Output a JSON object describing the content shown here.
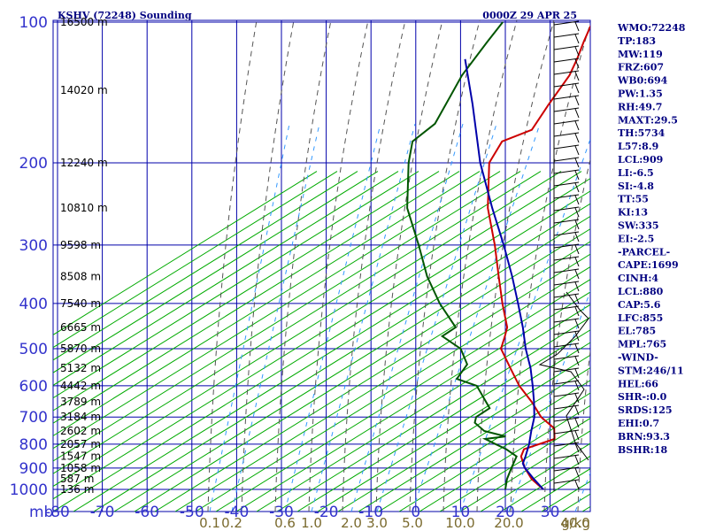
{
  "chart_data": {
    "type": "skew-t",
    "title": "KSHV (72248) Sounding",
    "time": "0000Z 29 APR 25",
    "pressure_axis_unit": "mb",
    "pressure_levels": [
      100,
      200,
      300,
      400,
      500,
      600,
      700,
      800,
      900,
      1000
    ],
    "temperature_ticks": [
      "-80",
      "-70",
      "-60",
      "-50",
      "-40",
      "-30",
      "-20",
      "-10",
      "0",
      "10",
      "20",
      "30"
    ],
    "temperature_range_c": [
      -80,
      40
    ],
    "mixing_ratio_labels": [
      "0.1",
      "0.2",
      "0.6",
      "1.0",
      "2.0",
      "3.0",
      "5.0",
      "10.0",
      "20.0",
      "40.0"
    ],
    "mixing_ratio_unit": "g/kg",
    "height_labels": [
      {
        "p": 100,
        "text": "16500 m"
      },
      {
        "p": 140,
        "text": "14020 m"
      },
      {
        "p": 200,
        "text": "12240 m"
      },
      {
        "p": 250,
        "text": "10810 m"
      },
      {
        "p": 300,
        "text": "9598 m"
      },
      {
        "p": 350,
        "text": "8508 m"
      },
      {
        "p": 400,
        "text": "7540 m"
      },
      {
        "p": 450,
        "text": "6665 m"
      },
      {
        "p": 500,
        "text": "5870 m"
      },
      {
        "p": 550,
        "text": "5132 m"
      },
      {
        "p": 600,
        "text": "4442 m"
      },
      {
        "p": 650,
        "text": "3789 m"
      },
      {
        "p": 700,
        "text": "3184 m"
      },
      {
        "p": 750,
        "text": "2602 m"
      },
      {
        "p": 800,
        "text": "2057 m"
      },
      {
        "p": 850,
        "text": "1547 m"
      },
      {
        "p": 900,
        "text": "1058 m"
      },
      {
        "p": 950,
        "text": "587 m"
      },
      {
        "p": 1000,
        "text": "136 m"
      }
    ],
    "series": [
      {
        "kind": "temperature",
        "color": "#cc0000",
        "points": [
          {
            "p": 1000,
            "t": 28.5
          },
          {
            "p": 950,
            "t": 23.5
          },
          {
            "p": 900,
            "t": 19.5
          },
          {
            "p": 850,
            "t": 16.0
          },
          {
            "p": 820,
            "t": 15.0
          },
          {
            "p": 780,
            "t": 19.5
          },
          {
            "p": 740,
            "t": 17.0
          },
          {
            "p": 700,
            "t": 11.5
          },
          {
            "p": 650,
            "t": 6.0
          },
          {
            "p": 600,
            "t": -0.5
          },
          {
            "p": 550,
            "t": -6.5
          },
          {
            "p": 500,
            "t": -13.0
          },
          {
            "p": 470,
            "t": -15.0
          },
          {
            "p": 450,
            "t": -16.5
          },
          {
            "p": 400,
            "t": -23.0
          },
          {
            "p": 350,
            "t": -30.0
          },
          {
            "p": 300,
            "t": -38.0
          },
          {
            "p": 250,
            "t": -48.0
          },
          {
            "p": 200,
            "t": -58.0
          },
          {
            "p": 180,
            "t": -60.0
          },
          {
            "p": 170,
            "t": -56.0
          },
          {
            "p": 150,
            "t": -58.0
          },
          {
            "p": 130,
            "t": -60.0
          },
          {
            "p": 120,
            "t": -62.0
          },
          {
            "p": 110,
            "t": -64.5
          },
          {
            "p": 100,
            "t": -67.0
          }
        ]
      },
      {
        "kind": "dewpoint",
        "color": "#005500",
        "points": [
          {
            "p": 1000,
            "t": 20.0
          },
          {
            "p": 975,
            "t": 19.0
          },
          {
            "p": 950,
            "t": 18.0
          },
          {
            "p": 900,
            "t": 16.5
          },
          {
            "p": 850,
            "t": 15.0
          },
          {
            "p": 820,
            "t": 11.0
          },
          {
            "p": 800,
            "t": 7.5
          },
          {
            "p": 780,
            "t": 4.0
          },
          {
            "p": 770,
            "t": 8.0
          },
          {
            "p": 750,
            "t": 2.0
          },
          {
            "p": 720,
            "t": -2.0
          },
          {
            "p": 700,
            "t": -3.0
          },
          {
            "p": 670,
            "t": -2.0
          },
          {
            "p": 600,
            "t": -10.0
          },
          {
            "p": 580,
            "t": -16.0
          },
          {
            "p": 540,
            "t": -17.0
          },
          {
            "p": 500,
            "t": -22.0
          },
          {
            "p": 470,
            "t": -29.0
          },
          {
            "p": 450,
            "t": -28.0
          },
          {
            "p": 400,
            "t": -37.0
          },
          {
            "p": 350,
            "t": -46.0
          },
          {
            "p": 300,
            "t": -55.0
          },
          {
            "p": 250,
            "t": -66.0
          },
          {
            "p": 200,
            "t": -76.0
          },
          {
            "p": 180,
            "t": -80.0
          },
          {
            "p": 165,
            "t": -79.0
          },
          {
            "p": 150,
            "t": -81.0
          },
          {
            "p": 130,
            "t": -84.0
          },
          {
            "p": 110,
            "t": -86.0
          },
          {
            "p": 100,
            "t": -87.0
          }
        ]
      },
      {
        "kind": "parcel",
        "color": "#0000aa",
        "points": [
          {
            "p": 1000,
            "t": 28.5
          },
          {
            "p": 950,
            "t": 24.0
          },
          {
            "p": 900,
            "t": 19.5
          },
          {
            "p": 880,
            "t": 18.0
          },
          {
            "p": 850,
            "t": 17.0
          },
          {
            "p": 800,
            "t": 15.0
          },
          {
            "p": 750,
            "t": 12.5
          },
          {
            "p": 700,
            "t": 10.0
          },
          {
            "p": 650,
            "t": 6.5
          },
          {
            "p": 600,
            "t": 2.5
          },
          {
            "p": 550,
            "t": -2.0
          },
          {
            "p": 500,
            "t": -7.5
          },
          {
            "p": 450,
            "t": -13.0
          },
          {
            "p": 400,
            "t": -19.5
          },
          {
            "p": 350,
            "t": -27.0
          },
          {
            "p": 300,
            "t": -36.0
          },
          {
            "p": 250,
            "t": -47.0
          },
          {
            "p": 200,
            "t": -60.0
          },
          {
            "p": 150,
            "t": -75.0
          },
          {
            "p": 120,
            "t": -87.0
          }
        ]
      }
    ],
    "indices": [
      "WMO:72248",
      "TP:183",
      "MW:119",
      "FRZ:607",
      "WB0:694",
      "PW:1.35",
      "RH:49.7",
      "MAXT:29.5",
      "TH:5734",
      "L57:8.9",
      "LCL:909",
      "LI:-6.5",
      "SI:-4.8",
      "TT:55",
      "KI:13",
      "SW:335",
      "EI:-2.5",
      "-PARCEL-",
      "CAPE:1699",
      "CINH:4",
      "LCL:880",
      "CAP:5.6",
      "LFC:855",
      "EL:785",
      "MPL:765",
      "-WIND-",
      "STM:246/11",
      "HEL:66",
      "SHR-:0.0",
      "SRDS:125",
      "EHI:0.7",
      "BRN:93.3",
      "BSHR:18"
    ],
    "grid": true,
    "colors": {
      "isobar": "#0000aa",
      "isotherm": "#0000aa",
      "dry_adiabat": "#00aa00",
      "moist_adiabat": "#555555",
      "mixing_ratio": "#3399ff"
    }
  }
}
